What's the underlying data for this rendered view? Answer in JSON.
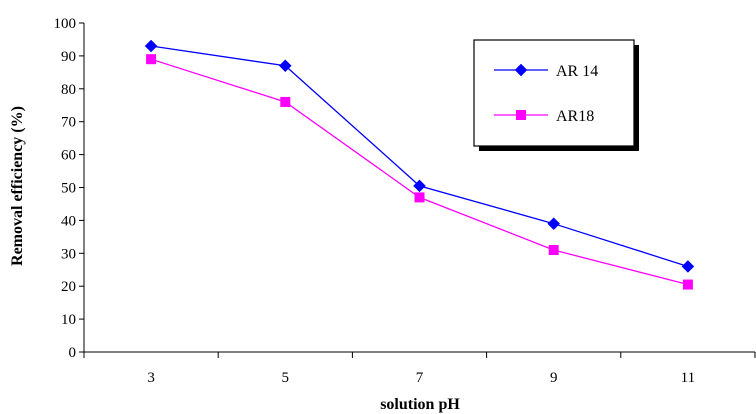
{
  "chart_data": {
    "type": "line",
    "title": "",
    "xlabel": "solution pH",
    "ylabel": "Removal efficiency (%)",
    "categories": [
      "3",
      "5",
      "7",
      "9",
      "11"
    ],
    "ylim": [
      0,
      100
    ],
    "yticks": [
      "0",
      "10",
      "20",
      "30",
      "40",
      "50",
      "60",
      "70",
      "80",
      "90",
      "100"
    ],
    "grid": false,
    "legend_position": "top-right",
    "series": [
      {
        "name": "AR 14",
        "values": [
          93,
          87,
          50.5,
          39,
          26
        ],
        "color": "#0000ff",
        "marker": "diamond"
      },
      {
        "name": "AR18",
        "values": [
          89,
          76,
          47,
          31,
          20.5
        ],
        "color": "#ff00ff",
        "marker": "square"
      }
    ]
  }
}
